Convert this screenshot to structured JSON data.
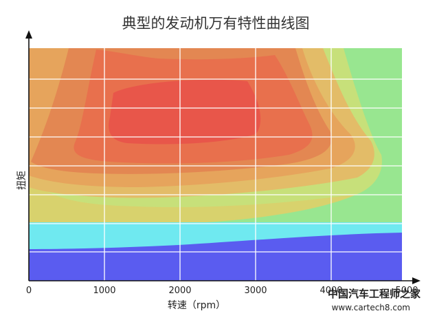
{
  "chart_data": {
    "type": "heatmap",
    "title": "典型的发动机万有特性曲线图",
    "xlabel": "转速（rpm）",
    "ylabel": "扭矩",
    "xlim": [
      0,
      5000
    ],
    "x_ticks": [
      "0",
      "1000",
      "2000",
      "3000",
      "4000",
      "5000"
    ],
    "y_ticks": [],
    "grid": true,
    "colors": {
      "red": "#e8564a",
      "red_orange": "#e8704d",
      "orange": "#e38752",
      "light_orange": "#e6a45c",
      "tan": "#e3bc68",
      "yellow": "#d8d26d",
      "yellow_green": "#c7e07a",
      "green": "#98e690",
      "cyan": "#6fe9f0",
      "blue": "#5a5cf0"
    }
  },
  "watermark": {
    "line1": "中国汽车工程师之家",
    "line2": "www.cartech8.com"
  }
}
